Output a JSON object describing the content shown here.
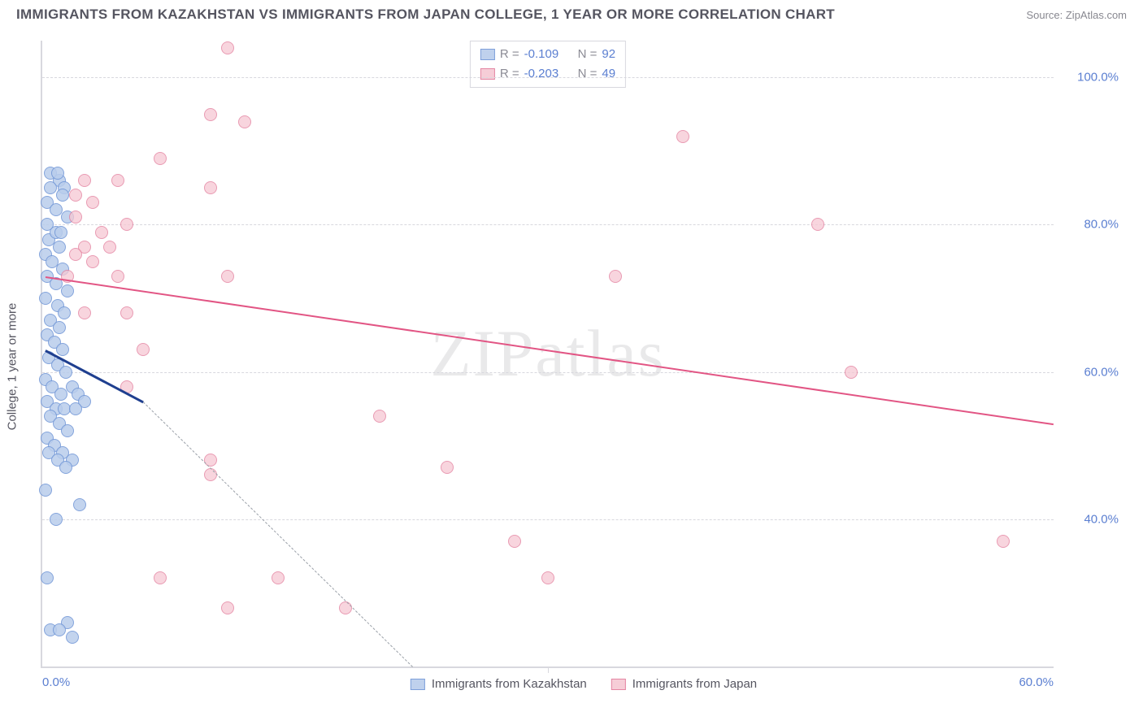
{
  "header": {
    "title": "IMMIGRANTS FROM KAZAKHSTAN VS IMMIGRANTS FROM JAPAN COLLEGE, 1 YEAR OR MORE CORRELATION CHART",
    "source": "Source: ZipAtlas.com"
  },
  "watermark": "ZIPatlas",
  "chart": {
    "type": "scatter",
    "y_axis_title": "College, 1 year or more",
    "xlim": [
      0,
      60
    ],
    "ylim": [
      20,
      105
    ],
    "x_ticks": [
      0,
      30,
      60
    ],
    "x_tick_labels": [
      "0.0%",
      "",
      "60.0%"
    ],
    "y_ticks": [
      40,
      60,
      80,
      100
    ],
    "y_tick_labels": [
      "40.0%",
      "60.0%",
      "80.0%",
      "100.0%"
    ],
    "background_color": "#ffffff",
    "grid_color": "#d8d8de",
    "axis_label_color": "#5b7fd1",
    "axis_title_color": "#555560",
    "marker_radius": 8,
    "marker_border_width": 1.5,
    "series": [
      {
        "name": "Immigrants from Kazakhstan",
        "fill_color": "#b9cdec",
        "fill_opacity": 0.55,
        "border_color": "#6f95d6",
        "r_value": "-0.109",
        "n_value": "92",
        "trend": {
          "x1": 0.2,
          "y1": 63,
          "x2": 6,
          "y2": 56,
          "color": "#1f3f8f",
          "width": 2.5,
          "dash_x2": 22,
          "dash_y2": 20
        },
        "points": [
          [
            0.5,
            87
          ],
          [
            1.0,
            86
          ],
          [
            1.3,
            85
          ],
          [
            0.3,
            83
          ],
          [
            0.8,
            82
          ],
          [
            1.5,
            81
          ],
          [
            0.4,
            78
          ],
          [
            1.0,
            77
          ],
          [
            0.2,
            76
          ],
          [
            0.6,
            75
          ],
          [
            1.2,
            74
          ],
          [
            0.3,
            73
          ],
          [
            0.8,
            72
          ],
          [
            1.5,
            71
          ],
          [
            0.2,
            70
          ],
          [
            0.9,
            69
          ],
          [
            1.3,
            68
          ],
          [
            0.5,
            67
          ],
          [
            1.0,
            66
          ],
          [
            0.3,
            65
          ],
          [
            0.7,
            64
          ],
          [
            1.2,
            63
          ],
          [
            0.4,
            62
          ],
          [
            0.9,
            61
          ],
          [
            1.4,
            60
          ],
          [
            0.2,
            59
          ],
          [
            0.6,
            58
          ],
          [
            1.1,
            57
          ],
          [
            1.8,
            58
          ],
          [
            2.1,
            57
          ],
          [
            2.5,
            56
          ],
          [
            0.3,
            56
          ],
          [
            0.8,
            55
          ],
          [
            1.3,
            55
          ],
          [
            2.0,
            55
          ],
          [
            0.5,
            54
          ],
          [
            1.0,
            53
          ],
          [
            1.5,
            52
          ],
          [
            0.3,
            51
          ],
          [
            0.7,
            50
          ],
          [
            1.2,
            49
          ],
          [
            1.8,
            48
          ],
          [
            0.4,
            49
          ],
          [
            0.9,
            48
          ],
          [
            1.4,
            47
          ],
          [
            0.2,
            44
          ],
          [
            2.2,
            42
          ],
          [
            0.8,
            40
          ],
          [
            0.3,
            32
          ],
          [
            1.5,
            26
          ],
          [
            0.5,
            25
          ],
          [
            1.0,
            25
          ],
          [
            1.8,
            24
          ],
          [
            0.8,
            79
          ],
          [
            0.3,
            80
          ],
          [
            1.1,
            79
          ],
          [
            0.5,
            85
          ],
          [
            1.2,
            84
          ],
          [
            0.9,
            87
          ]
        ]
      },
      {
        "name": "Immigrants from Japan",
        "fill_color": "#f6c8d3",
        "fill_opacity": 0.45,
        "border_color": "#e27a9a",
        "r_value": "-0.203",
        "n_value": "49",
        "trend": {
          "x1": 0.2,
          "y1": 73,
          "x2": 60,
          "y2": 53,
          "color": "#e25584",
          "width": 2
        },
        "points": [
          [
            11,
            104
          ],
          [
            10,
            95
          ],
          [
            12,
            94
          ],
          [
            7,
            89
          ],
          [
            2.5,
            86
          ],
          [
            4.5,
            86
          ],
          [
            10,
            85
          ],
          [
            3,
            83
          ],
          [
            2,
            81
          ],
          [
            5,
            80
          ],
          [
            3.5,
            79
          ],
          [
            2.5,
            77
          ],
          [
            4,
            77
          ],
          [
            2,
            76
          ],
          [
            3,
            75
          ],
          [
            1.5,
            73
          ],
          [
            4.5,
            73
          ],
          [
            11,
            73
          ],
          [
            2.5,
            68
          ],
          [
            5,
            68
          ],
          [
            6,
            63
          ],
          [
            5,
            58
          ],
          [
            20,
            54
          ],
          [
            10,
            48
          ],
          [
            24,
            47
          ],
          [
            10,
            46
          ],
          [
            7,
            32
          ],
          [
            14,
            32
          ],
          [
            11,
            28
          ],
          [
            18,
            28
          ],
          [
            38,
            92
          ],
          [
            34,
            73
          ],
          [
            46,
            80
          ],
          [
            48,
            60
          ],
          [
            57,
            37
          ],
          [
            28,
            37
          ],
          [
            30,
            32
          ],
          [
            2,
            84
          ]
        ]
      }
    ],
    "legend_labels": {
      "r_prefix": "R =",
      "n_prefix": "N ="
    },
    "bottom_legend": [
      "Immigrants from Kazakhstan",
      "Immigrants from Japan"
    ]
  }
}
